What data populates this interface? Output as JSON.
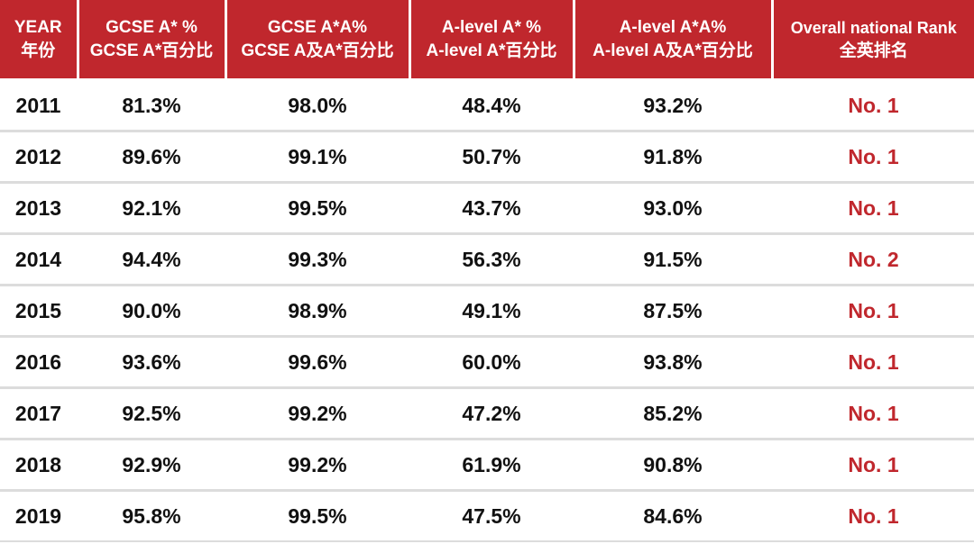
{
  "table": {
    "headers": [
      {
        "en": "YEAR",
        "zh": "年份"
      },
      {
        "en": "GCSE A* %",
        "zh": "GCSE A*百分比"
      },
      {
        "en": "GCSE A*A%",
        "zh": "GCSE A及A*百分比"
      },
      {
        "en": "A-level A* %",
        "zh": "A-level A*百分比"
      },
      {
        "en": "A-level A*A%",
        "zh": "A-level A及A*百分比"
      },
      {
        "en": "Overall national Rank",
        "zh": "全英排名"
      }
    ],
    "rows": [
      {
        "year": "2011",
        "gcse_astar": "81.3%",
        "gcse_astar_a": "98.0%",
        "alevel_astar": "48.4%",
        "alevel_astar_a": "93.2%",
        "rank": "No. 1"
      },
      {
        "year": "2012",
        "gcse_astar": "89.6%",
        "gcse_astar_a": "99.1%",
        "alevel_astar": "50.7%",
        "alevel_astar_a": "91.8%",
        "rank": "No. 1"
      },
      {
        "year": "2013",
        "gcse_astar": "92.1%",
        "gcse_astar_a": "99.5%",
        "alevel_astar": "43.7%",
        "alevel_astar_a": "93.0%",
        "rank": "No. 1"
      },
      {
        "year": "2014",
        "gcse_astar": "94.4%",
        "gcse_astar_a": "99.3%",
        "alevel_astar": "56.3%",
        "alevel_astar_a": "91.5%",
        "rank": "No. 2"
      },
      {
        "year": "2015",
        "gcse_astar": "90.0%",
        "gcse_astar_a": "98.9%",
        "alevel_astar": "49.1%",
        "alevel_astar_a": "87.5%",
        "rank": "No. 1"
      },
      {
        "year": "2016",
        "gcse_astar": "93.6%",
        "gcse_astar_a": "99.6%",
        "alevel_astar": "60.0%",
        "alevel_astar_a": "93.8%",
        "rank": "No. 1"
      },
      {
        "year": "2017",
        "gcse_astar": "92.5%",
        "gcse_astar_a": "99.2%",
        "alevel_astar": "47.2%",
        "alevel_astar_a": "85.2%",
        "rank": "No. 1"
      },
      {
        "year": "2018",
        "gcse_astar": "92.9%",
        "gcse_astar_a": "99.2%",
        "alevel_astar": "61.9%",
        "alevel_astar_a": "90.8%",
        "rank": "No. 1"
      },
      {
        "year": "2019",
        "gcse_astar": "95.8%",
        "gcse_astar_a": "99.5%",
        "alevel_astar": "47.5%",
        "alevel_astar_a": "84.6%",
        "rank": "No. 1"
      }
    ]
  },
  "colors": {
    "header_bg": "#c0272d",
    "header_text": "#ffffff",
    "rank_text": "#c0272d",
    "value_text": "#111111",
    "row_divider": "#dcdcdc"
  }
}
